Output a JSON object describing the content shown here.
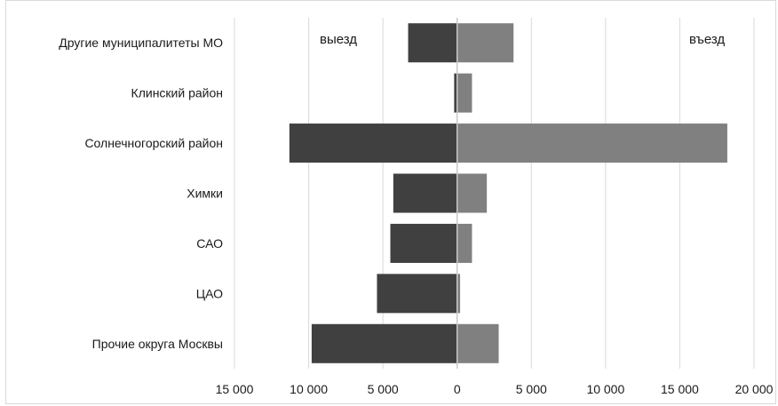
{
  "chart_data": {
    "type": "bar",
    "orientation": "horizontal",
    "categories": [
      "Другие муниципалитеты МО",
      "Клинский район",
      "Солнечногорский район",
      "Химки",
      "САО",
      "ЦАО",
      "Прочие округа Москвы"
    ],
    "series": [
      {
        "name": "выезд",
        "values": [
          -3300,
          -200,
          -11300,
          -4300,
          -4500,
          -5400,
          -9800
        ]
      },
      {
        "name": "въезд",
        "values": [
          3800,
          1000,
          18200,
          2000,
          1000,
          200,
          2800
        ]
      }
    ],
    "xlim": [
      -15000,
      20000
    ],
    "x_ticks": [
      -15000,
      -10000,
      -5000,
      0,
      5000,
      10000,
      15000,
      20000
    ],
    "x_tick_labels": [
      "15 000",
      "10 000",
      "5 000",
      "0",
      "5 000",
      "10 000",
      "15 000",
      "20 000"
    ],
    "grid": "vertical",
    "annotations": {
      "left": "выезд",
      "right": "въезд"
    },
    "colors": {
      "выезд": "#404040",
      "въезд": "#808080",
      "grid": "#d9d9d9",
      "zero_line": "#c8c8c8"
    }
  }
}
